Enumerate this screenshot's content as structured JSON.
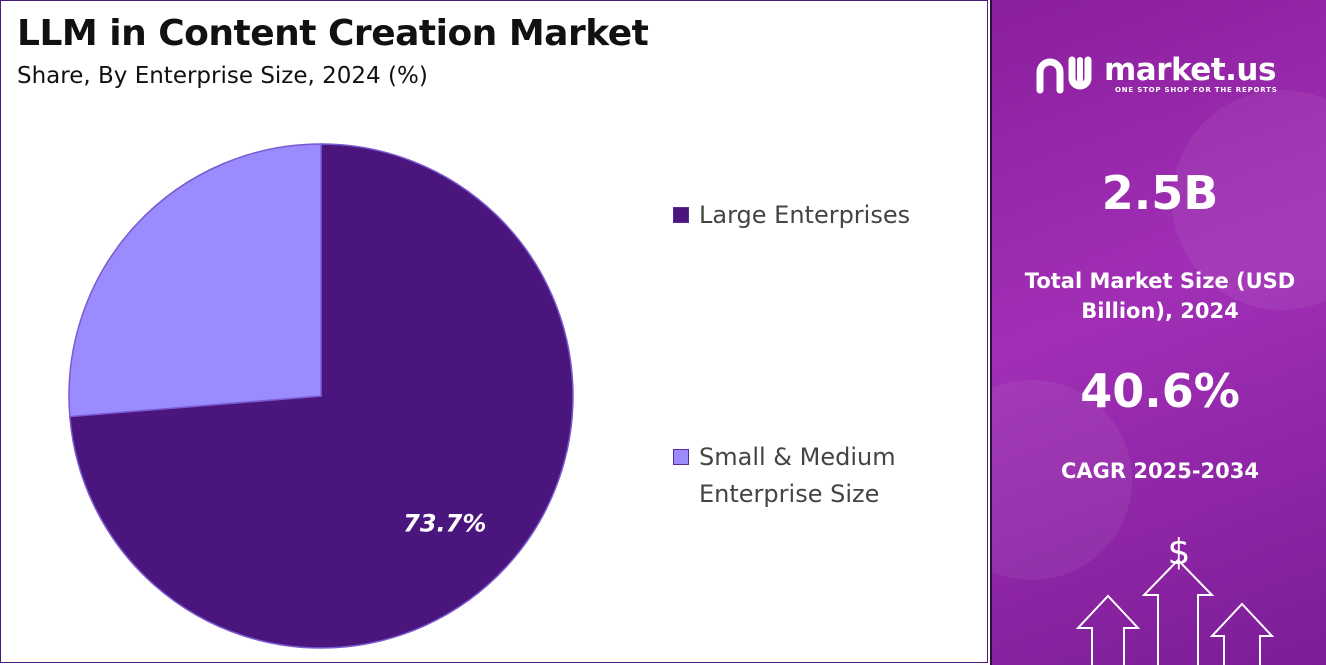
{
  "title": "LLM in Content Creation Market",
  "subtitle": "Share, By Enterprise Size, 2024 (%)",
  "chart_data": {
    "type": "pie",
    "categories": [
      "Large Enterprises",
      "Small & Medium Enterprise Size"
    ],
    "values": [
      73.7,
      26.3
    ],
    "colors": [
      "#4b157e",
      "#9a8cff"
    ],
    "data_labels": [
      "73.7%",
      ""
    ],
    "legend_position": "right"
  },
  "legend": [
    {
      "label": "Large Enterprises",
      "color": "#4b157e"
    },
    {
      "label": "Small & Medium Enterprise Size",
      "color": "#9a8cff"
    }
  ],
  "side_panel": {
    "logo_text": "market.us",
    "logo_tagline": "ONE STOP SHOP FOR THE REPORTS",
    "market_size_value": "2.5B",
    "market_size_label": "Total Market Size (USD Billion), 2024",
    "cagr_value": "40.6%",
    "cagr_label": "CAGR 2025-2034",
    "dollar_symbol": "$",
    "accent_color": "#9b2bb0"
  }
}
